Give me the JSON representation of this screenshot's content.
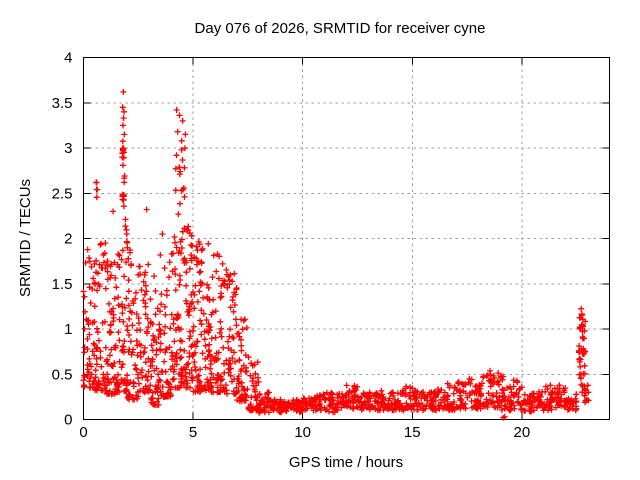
{
  "chart_data": {
    "type": "scatter",
    "title": "Day 076 of 2026, SRMTID for receiver cyne",
    "xlabel": "GPS time / hours",
    "ylabel": "SRMTID / TECUs",
    "xlim": [
      0,
      24
    ],
    "ylim": [
      0,
      4
    ],
    "xticks": [
      0,
      5,
      10,
      15,
      20
    ],
    "yticks": [
      0,
      0.5,
      1,
      1.5,
      2,
      2.5,
      3,
      3.5,
      4
    ],
    "grid": true,
    "legend": "none",
    "marker": "plus",
    "marker_size": 7,
    "colors": {
      "marker": "#ff0000",
      "grid": "#9a9a9a",
      "axis": "#000000",
      "background": "#ffffff",
      "text": "#000000"
    },
    "seed": 76,
    "description": "Dense scatter of red plus markers: high TID activity 0-8 h (values mostly 0.3-2.1 with spikes to 3.62 near 1.8 h and 3.42 near 4.3 h), quiet band 0.1-0.3 from 8-22.5 h with small bumps near 12.3 h and 18-19.5 h, and a final narrow spike to 1.27 near 22.7-23 h.",
    "clusters": [
      [
        0.25,
        0.5,
        50,
        0.35,
        1.9,
        2.2
      ],
      [
        0.75,
        0.5,
        55,
        0.32,
        1.95,
        2.1
      ],
      [
        1.25,
        0.5,
        55,
        0.28,
        1.75,
        1.9
      ],
      [
        1.75,
        0.5,
        58,
        0.3,
        2.0,
        1.8
      ],
      [
        2.25,
        0.5,
        55,
        0.22,
        1.9,
        2.0
      ],
      [
        2.75,
        0.5,
        50,
        0.3,
        1.85,
        2.0
      ],
      [
        3.25,
        0.5,
        55,
        0.16,
        1.6,
        1.9
      ],
      [
        3.75,
        0.5,
        50,
        0.25,
        1.9,
        2.1
      ],
      [
        4.25,
        0.5,
        60,
        0.35,
        2.1,
        1.8
      ],
      [
        4.75,
        0.5,
        65,
        0.35,
        2.15,
        1.7
      ],
      [
        5.25,
        0.5,
        60,
        0.3,
        2.05,
        1.8
      ],
      [
        5.75,
        0.5,
        55,
        0.3,
        1.95,
        1.9
      ],
      [
        6.25,
        0.5,
        50,
        0.3,
        1.9,
        2.0
      ],
      [
        6.75,
        0.5,
        50,
        0.28,
        1.7,
        2.0
      ],
      [
        7.25,
        0.5,
        45,
        0.2,
        1.25,
        1.7
      ],
      [
        7.75,
        0.5,
        40,
        0.1,
        0.7,
        1.9
      ],
      [
        1.82,
        0.12,
        22,
        2.35,
        3.08,
        1.0
      ],
      [
        1.95,
        0.1,
        6,
        1.9,
        2.3,
        1.0
      ],
      [
        4.42,
        0.45,
        16,
        2.2,
        3.0,
        1.0
      ],
      [
        0.95,
        0.3,
        8,
        1.5,
        1.95,
        1.0
      ],
      [
        0.6,
        0.12,
        3,
        2.45,
        2.62,
        1.0
      ],
      [
        8.25,
        0.5,
        30,
        0.07,
        0.3,
        1.3
      ],
      [
        8.75,
        0.5,
        30,
        0.08,
        0.22,
        1.2
      ],
      [
        9.25,
        0.5,
        28,
        0.08,
        0.2,
        1.2
      ],
      [
        9.75,
        0.5,
        28,
        0.08,
        0.22,
        1.2
      ],
      [
        10.25,
        0.5,
        28,
        0.1,
        0.25,
        1.2
      ],
      [
        10.75,
        0.5,
        28,
        0.1,
        0.28,
        1.2
      ],
      [
        11.25,
        0.5,
        28,
        0.08,
        0.3,
        1.2
      ],
      [
        11.75,
        0.5,
        28,
        0.1,
        0.3,
        1.2
      ],
      [
        12.25,
        0.5,
        30,
        0.12,
        0.42,
        1.4
      ],
      [
        12.75,
        0.5,
        28,
        0.1,
        0.3,
        1.2
      ],
      [
        13.25,
        0.5,
        28,
        0.1,
        0.3,
        1.2
      ],
      [
        13.75,
        0.5,
        28,
        0.1,
        0.32,
        1.2
      ],
      [
        14.25,
        0.5,
        28,
        0.1,
        0.3,
        1.2
      ],
      [
        14.75,
        0.5,
        28,
        0.1,
        0.38,
        1.3
      ],
      [
        15.25,
        0.5,
        28,
        0.1,
        0.35,
        1.2
      ],
      [
        15.75,
        0.5,
        28,
        0.1,
        0.32,
        1.2
      ],
      [
        16.25,
        0.5,
        28,
        0.1,
        0.35,
        1.3
      ],
      [
        16.75,
        0.5,
        28,
        0.1,
        0.4,
        1.4
      ],
      [
        17.25,
        0.5,
        28,
        0.12,
        0.42,
        1.4
      ],
      [
        17.75,
        0.5,
        28,
        0.12,
        0.45,
        1.4
      ],
      [
        18.25,
        0.5,
        30,
        0.12,
        0.5,
        1.5
      ],
      [
        18.75,
        0.5,
        32,
        0.12,
        0.58,
        1.5
      ],
      [
        19.25,
        0.5,
        30,
        0.1,
        0.5,
        1.5
      ],
      [
        19.75,
        0.5,
        28,
        0.1,
        0.45,
        1.4
      ],
      [
        20.25,
        0.5,
        28,
        0.08,
        0.3,
        1.2
      ],
      [
        20.75,
        0.5,
        28,
        0.1,
        0.32,
        1.2
      ],
      [
        21.25,
        0.5,
        28,
        0.1,
        0.38,
        1.3
      ],
      [
        21.75,
        0.5,
        28,
        0.12,
        0.4,
        1.3
      ],
      [
        22.25,
        0.5,
        26,
        0.1,
        0.3,
        1.2
      ],
      [
        22.75,
        0.3,
        38,
        0.28,
        1.15,
        1.0
      ],
      [
        22.72,
        0.12,
        10,
        1.0,
        1.27,
        1.0
      ],
      [
        22.95,
        0.2,
        10,
        0.15,
        0.4,
        1.0
      ]
    ],
    "points": [
      [
        1.82,
        3.62
      ],
      [
        1.79,
        3.45
      ],
      [
        1.85,
        3.4
      ],
      [
        1.83,
        3.33
      ],
      [
        1.8,
        3.25
      ],
      [
        1.86,
        3.15
      ],
      [
        4.25,
        3.42
      ],
      [
        4.38,
        3.36
      ],
      [
        4.52,
        3.3
      ],
      [
        4.3,
        3.18
      ],
      [
        4.65,
        3.15
      ],
      [
        4.48,
        3.08
      ],
      [
        0.58,
        2.62
      ],
      [
        0.63,
        2.54
      ],
      [
        2.88,
        2.32
      ],
      [
        1.35,
        2.3
      ],
      [
        3.6,
        2.05
      ],
      [
        19.15,
        0.02
      ],
      [
        19.22,
        0.03
      ]
    ]
  }
}
